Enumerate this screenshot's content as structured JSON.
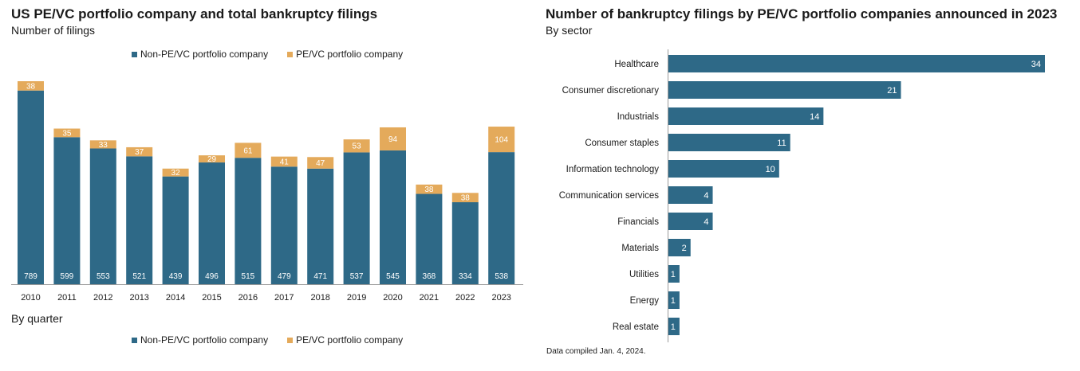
{
  "colors": {
    "non_pe": "#2e6987",
    "pe": "#e4aa5b",
    "axis": "#9a9a9a",
    "label_light": "#ffffff"
  },
  "left": {
    "title": "US PE/VC portfolio company and total bankruptcy filings",
    "subtitle": "Number of filings",
    "legend": [
      "Non-PE/VC portfolio company",
      "PE/VC portfolio company"
    ],
    "footer_label": "By quarter",
    "footer_legend": [
      "Non-PE/VC portfolio company",
      "PE/VC portfolio company"
    ]
  },
  "right": {
    "title": "Number of bankruptcy filings by PE/VC portfolio companies announced in 2023",
    "subtitle": "By sector",
    "note": "Data compiled Jan. 4, 2024."
  },
  "chart_data": [
    {
      "type": "bar",
      "stacked": true,
      "orientation": "vertical",
      "title": "US PE/VC portfolio company and total bankruptcy filings",
      "subtitle": "Number of filings",
      "categories": [
        "2010",
        "2011",
        "2012",
        "2013",
        "2014",
        "2015",
        "2016",
        "2017",
        "2018",
        "2019",
        "2020",
        "2021",
        "2022",
        "2023"
      ],
      "series": [
        {
          "name": "Non-PE/VC portfolio company",
          "values": [
            789,
            599,
            553,
            521,
            439,
            496,
            515,
            479,
            471,
            537,
            545,
            368,
            334,
            538
          ]
        },
        {
          "name": "PE/VC portfolio company",
          "values": [
            38,
            35,
            33,
            37,
            32,
            29,
            61,
            41,
            47,
            53,
            94,
            38,
            38,
            104
          ]
        }
      ],
      "ylim": [
        0,
        827
      ],
      "grid": false,
      "legend_position": "top"
    },
    {
      "type": "bar",
      "orientation": "horizontal",
      "title": "Number of bankruptcy filings by PE/VC portfolio companies announced in 2023",
      "subtitle": "By sector",
      "categories": [
        "Healthcare",
        "Consumer discretionary",
        "Industrials",
        "Consumer staples",
        "Information technology",
        "Communication services",
        "Financials",
        "Materials",
        "Utilities",
        "Energy",
        "Real estate"
      ],
      "values": [
        34,
        21,
        14,
        11,
        10,
        4,
        4,
        2,
        1,
        1,
        1
      ],
      "xlim": [
        0,
        34
      ],
      "grid": false
    }
  ]
}
